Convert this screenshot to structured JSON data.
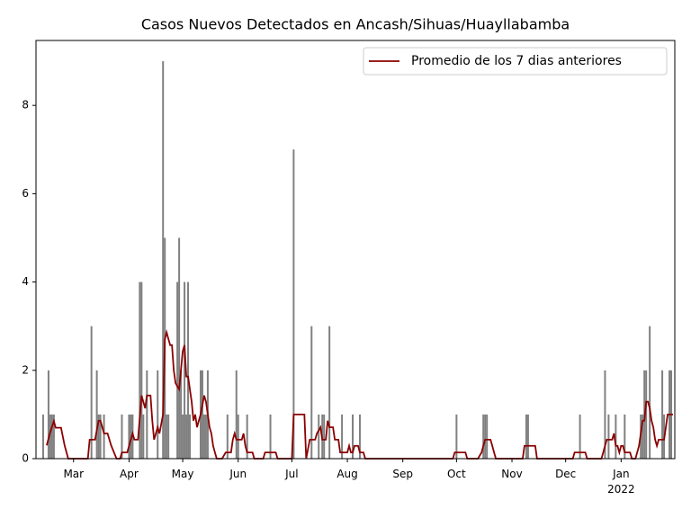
{
  "chart_data": {
    "type": "bar+line",
    "title": "Casos Nuevos Detectados en Ancash/Sihuas/Huayllabamba",
    "xlim": [
      39,
      396
    ],
    "ylim": [
      0,
      9.47
    ],
    "xticks": [
      {
        "value": 60,
        "label": "Mar"
      },
      {
        "value": 91,
        "label": "Apr"
      },
      {
        "value": 121,
        "label": "May"
      },
      {
        "value": 152,
        "label": "Jun"
      },
      {
        "value": 182,
        "label": "Jul"
      },
      {
        "value": 213,
        "label": "Aug"
      },
      {
        "value": 244,
        "label": "Sep"
      },
      {
        "value": 274,
        "label": "Oct"
      },
      {
        "value": 305,
        "label": "Nov"
      },
      {
        "value": 335,
        "label": "Dec"
      },
      {
        "value": 366,
        "label": "Jan\n2022"
      }
    ],
    "yticks": [
      0,
      2,
      4,
      6,
      8
    ],
    "legend_position": "upper right",
    "series": [
      {
        "type": "bar",
        "color": "#808080",
        "x": [
          43,
          46,
          47,
          48,
          49,
          70,
          73,
          74,
          75,
          77,
          87,
          91,
          92,
          93,
          97,
          98,
          99,
          101,
          107,
          110,
          111,
          112,
          113,
          118,
          119,
          120,
          121,
          122,
          123,
          124,
          125,
          131,
          132,
          133,
          134,
          135,
          146,
          151,
          152,
          157,
          170,
          183,
          193,
          197,
          199,
          200,
          203,
          210,
          216,
          220,
          274,
          289,
          290,
          291,
          313,
          314,
          343,
          357,
          359,
          363,
          368,
          377,
          378,
          379,
          380,
          382,
          389,
          390,
          393,
          394
        ],
        "values": [
          1,
          2,
          1,
          1,
          1,
          3,
          2,
          1,
          1,
          1,
          1,
          1,
          1,
          1,
          4,
          4,
          1,
          2,
          2,
          9,
          5,
          1,
          1,
          4,
          5,
          2,
          1,
          4,
          1,
          4,
          1,
          2,
          2,
          1,
          1,
          2,
          1,
          2,
          1,
          1,
          1,
          7,
          3,
          1,
          1,
          1,
          3,
          1,
          1,
          1,
          1,
          1,
          1,
          1,
          1,
          1,
          1,
          2,
          1,
          1,
          1,
          1,
          1,
          2,
          2,
          3,
          2,
          1,
          2,
          2
        ]
      },
      {
        "type": "line",
        "name": "Promedio de los 7 dias anteriores",
        "color": "#8b0000",
        "x": [
          45,
          47,
          49,
          50,
          53,
          55,
          57,
          68,
          69,
          72,
          74,
          75,
          77,
          79,
          81,
          83,
          84,
          86,
          87,
          90,
          92,
          93,
          94,
          96,
          98,
          100,
          101,
          103,
          104,
          105,
          107,
          108,
          110,
          111,
          112,
          113,
          114,
          115,
          116,
          117,
          119,
          120,
          121,
          122,
          123,
          124,
          125,
          126,
          127,
          128,
          129,
          130,
          131,
          133,
          134,
          135,
          136,
          137,
          138,
          139,
          140,
          143,
          145,
          148,
          149,
          150,
          151,
          154,
          155,
          156,
          157,
          160,
          161,
          166,
          167,
          173,
          174,
          182,
          183,
          189,
          190,
          192,
          195,
          196,
          198,
          199,
          201,
          202,
          203,
          205,
          206,
          208,
          209,
          213,
          214,
          215,
          216,
          217,
          219,
          220,
          222,
          223,
          272,
          273,
          279,
          280,
          286,
          288,
          289,
          290,
          293,
          294,
          295,
          296,
          311,
          312,
          318,
          319,
          339,
          340,
          346,
          347,
          355,
          356,
          357,
          358,
          361,
          362,
          363,
          364,
          365,
          366,
          367,
          368,
          371,
          372,
          374,
          376,
          377,
          378,
          379,
          380,
          381,
          382,
          383,
          384,
          385,
          386,
          387,
          390,
          391,
          392,
          395
        ],
        "values": [
          0.3,
          0.6,
          0.85,
          0.7,
          0.7,
          0.3,
          0,
          0,
          0.43,
          0.43,
          0.86,
          0.86,
          0.57,
          0.57,
          0.3,
          0.1,
          0,
          0,
          0.14,
          0.14,
          0.43,
          0.57,
          0.43,
          0.43,
          1.43,
          1.14,
          1.43,
          1.43,
          0.86,
          0.43,
          0.71,
          0.57,
          1.0,
          2.7,
          2.86,
          2.71,
          2.57,
          2.57,
          2.0,
          1.71,
          1.57,
          2.0,
          2.43,
          2.57,
          1.86,
          1.86,
          1.57,
          1.29,
          0.86,
          1.0,
          0.71,
          0.86,
          1.0,
          1.43,
          1.29,
          1.0,
          0.71,
          0.57,
          0.29,
          0.14,
          0,
          0,
          0.14,
          0.14,
          0.43,
          0.57,
          0.43,
          0.43,
          0.57,
          0.29,
          0.14,
          0.14,
          0,
          0,
          0.14,
          0.14,
          0,
          0,
          1.0,
          1.0,
          0,
          0.43,
          0.43,
          0.57,
          0.71,
          0.43,
          0.43,
          0.86,
          0.71,
          0.71,
          0.43,
          0.43,
          0.14,
          0.14,
          0.29,
          0.14,
          0.14,
          0.29,
          0.29,
          0.14,
          0.14,
          0,
          0,
          0.14,
          0.14,
          0,
          0,
          0.14,
          0.29,
          0.43,
          0.43,
          0.29,
          0.14,
          0,
          0,
          0.29,
          0.29,
          0,
          0,
          0.14,
          0.14,
          0,
          0,
          0.14,
          0.29,
          0.43,
          0.43,
          0.57,
          0.29,
          0.29,
          0.14,
          0.29,
          0.29,
          0.14,
          0.14,
          0,
          0,
          0.29,
          0.57,
          0.86,
          0.86,
          1.29,
          1.29,
          1.14,
          0.86,
          0.71,
          0.43,
          0.29,
          0.43,
          0.43,
          0.71,
          1.0,
          1.0
        ]
      }
    ]
  }
}
